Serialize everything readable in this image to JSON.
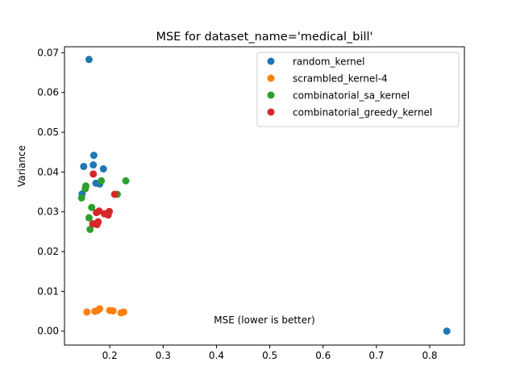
{
  "chart_data": {
    "type": "scatter",
    "title": "MSE for dataset_name='medical_bill'",
    "xlabel": "MSE (lower is better)",
    "ylabel": "Variance",
    "xlim": [
      0.115,
      0.865
    ],
    "ylim": [
      -0.0035,
      0.0715
    ],
    "xticks": [
      0.2,
      0.3,
      0.4,
      0.5,
      0.6,
      0.7,
      0.8
    ],
    "xtick_labels": [
      "0.2",
      "0.3",
      "0.4",
      "0.5",
      "0.6",
      "0.7",
      "0.8"
    ],
    "yticks": [
      0.0,
      0.01,
      0.02,
      0.03,
      0.04,
      0.05,
      0.06,
      0.07
    ],
    "ytick_labels": [
      "0.00",
      "0.01",
      "0.02",
      "0.03",
      "0.04",
      "0.05",
      "0.06",
      "0.07"
    ],
    "grid": false,
    "legend_position": "top-right",
    "series": [
      {
        "name": "random_kernel",
        "color": "#1f77b4",
        "points": [
          [
            0.161,
            0.0683
          ],
          [
            0.17,
            0.0442
          ],
          [
            0.151,
            0.0414
          ],
          [
            0.169,
            0.0418
          ],
          [
            0.188,
            0.0408
          ],
          [
            0.174,
            0.0372
          ],
          [
            0.181,
            0.037
          ],
          [
            0.148,
            0.0345
          ],
          [
            0.832,
            0.0
          ]
        ]
      },
      {
        "name": "scrambled_kernel-4",
        "color": "#ff7f0e",
        "points": [
          [
            0.157,
            0.0048
          ],
          [
            0.172,
            0.005
          ],
          [
            0.177,
            0.0052
          ],
          [
            0.181,
            0.0056
          ],
          [
            0.2,
            0.0052
          ],
          [
            0.206,
            0.0051
          ],
          [
            0.221,
            0.0046
          ],
          [
            0.226,
            0.0048
          ]
        ]
      },
      {
        "name": "combinatorial_sa_kernel",
        "color": "#2ca02c",
        "points": [
          [
            0.155,
            0.0365
          ],
          [
            0.154,
            0.0358
          ],
          [
            0.147,
            0.0335
          ],
          [
            0.184,
            0.0378
          ],
          [
            0.23,
            0.0378
          ],
          [
            0.214,
            0.0344
          ],
          [
            0.166,
            0.0311
          ],
          [
            0.161,
            0.0285
          ],
          [
            0.163,
            0.0256
          ]
        ]
      },
      {
        "name": "combinatorial_greedy_kernel",
        "color": "#d62728",
        "points": [
          [
            0.169,
            0.0395
          ],
          [
            0.209,
            0.0344
          ],
          [
            0.18,
            0.0302
          ],
          [
            0.199,
            0.0301
          ],
          [
            0.175,
            0.0298
          ],
          [
            0.19,
            0.0295
          ],
          [
            0.197,
            0.0292
          ],
          [
            0.178,
            0.0275
          ],
          [
            0.176,
            0.0268
          ],
          [
            0.168,
            0.027
          ]
        ]
      }
    ]
  }
}
